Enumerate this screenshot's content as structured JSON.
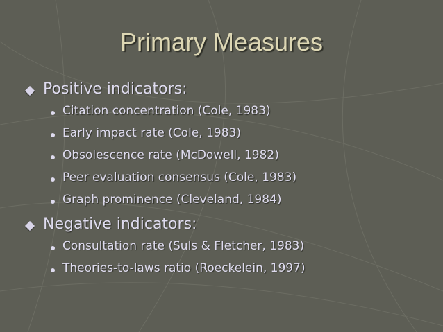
{
  "title": "Primary Measures",
  "sections": [
    {
      "heading": "Positive indicators:",
      "items": [
        "Citation concentration (Cole, 1983)",
        "Early impact rate (Cole, 1983)",
        "Obsolescence rate (McDowell, 1982)",
        "Peer evaluation consensus (Cole, 1983)",
        "Graph prominence (Cleveland, 1984)"
      ]
    },
    {
      "heading": "Negative indicators:",
      "items": [
        "Consultation rate (Suls & Fletcher, 1983)",
        "Theories-to-laws ratio (Roeckelein, 1997)"
      ]
    }
  ]
}
